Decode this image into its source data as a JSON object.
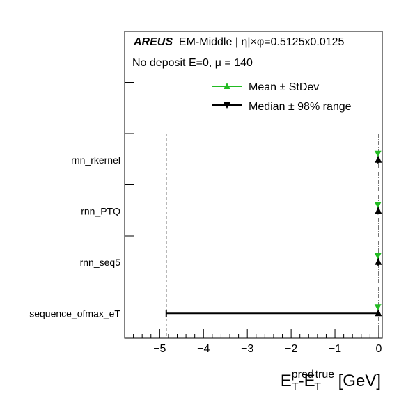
{
  "header": {
    "brand": "AREUS",
    "region": "EM-Middle | η|×φ=0.5125x0.0125",
    "line2": "No deposit E=0,  μ = 140"
  },
  "legend": {
    "mean_label": "Mean ± StDev",
    "median_label": "Median ± 98% range"
  },
  "colors": {
    "mean": "#22bb22",
    "median": "#000000"
  },
  "chart_data": {
    "type": "scatter",
    "orientation": "horizontal",
    "categories": [
      "sequence_ofmax_eT",
      "rnn_seq5",
      "rnn_PTQ",
      "rnn_rkernel"
    ],
    "xlim": [
      -5.8,
      0.08
    ],
    "xticks": [
      -5,
      -4,
      -3,
      -2,
      -1,
      0
    ],
    "xtick_labels": [
      "−5",
      "−4",
      "−3",
      "−2",
      "−1",
      "0"
    ],
    "xlabel": {
      "base1": "E",
      "sup1": "pred",
      "sub1": "T",
      "dash": "-",
      "base2": "E",
      "sup2": "true",
      "sub2": "T",
      "unit": " [GeV]"
    },
    "reference_lines": [
      -4.85,
      0
    ],
    "series": [
      {
        "name": "Mean ± StDev",
        "marker": "triangle-down",
        "values": [
          -0.02,
          -0.02,
          -0.02,
          -0.02
        ],
        "err_low": [
          0.02,
          0.02,
          0.02,
          0.02
        ],
        "err_high": [
          0.02,
          0.02,
          0.02,
          0.02
        ]
      },
      {
        "name": "Median ± 98% range",
        "marker": "triangle-up",
        "values": [
          -0.01,
          -0.01,
          -0.01,
          -0.01
        ],
        "range_low": [
          -4.85,
          -0.02,
          -0.02,
          -0.02
        ],
        "range_high": [
          0.0,
          0.0,
          0.0,
          0.0
        ]
      }
    ],
    "grid": false,
    "legend_position": "top-right"
  }
}
